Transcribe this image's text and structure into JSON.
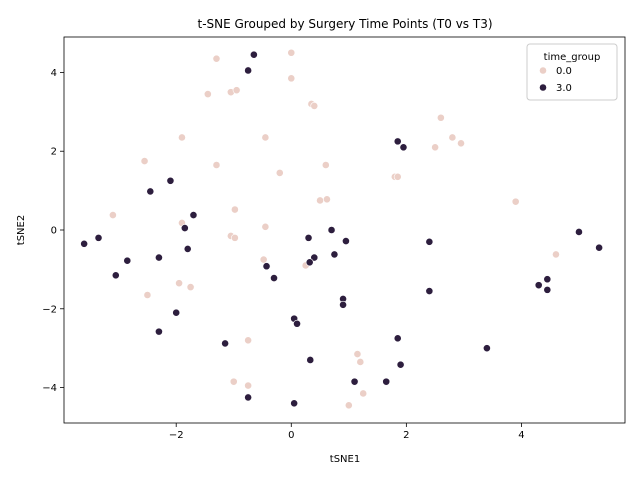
{
  "chart_data": {
    "type": "scatter",
    "title": "t-SNE Grouped by Surgery Time Points (T0 vs T3)",
    "xlabel": "tSNE1",
    "ylabel": "tSNE2",
    "xlim": [
      -3.95,
      5.8
    ],
    "ylim": [
      -4.9,
      4.9
    ],
    "xticks": [
      -2,
      0,
      2,
      4
    ],
    "yticks": [
      -4,
      -2,
      0,
      2,
      4
    ],
    "legend": {
      "title": "time_group",
      "placement": "top-right"
    },
    "series": [
      {
        "name": "0.0",
        "color": "#ebcfc7",
        "points": [
          [
            -1.3,
            4.35
          ],
          [
            0.0,
            4.5
          ],
          [
            0.0,
            3.85
          ],
          [
            -1.05,
            3.5
          ],
          [
            -0.95,
            3.55
          ],
          [
            -1.45,
            3.45
          ],
          [
            0.35,
            3.2
          ],
          [
            0.4,
            3.15
          ],
          [
            2.6,
            2.85
          ],
          [
            2.8,
            2.35
          ],
          [
            2.95,
            2.2
          ],
          [
            2.5,
            2.1
          ],
          [
            -1.9,
            2.35
          ],
          [
            -0.45,
            2.35
          ],
          [
            -2.55,
            1.75
          ],
          [
            -1.3,
            1.65
          ],
          [
            0.6,
            1.65
          ],
          [
            -0.2,
            1.45
          ],
          [
            1.8,
            1.35
          ],
          [
            1.85,
            1.35
          ],
          [
            0.5,
            0.75
          ],
          [
            0.62,
            0.78
          ],
          [
            3.9,
            0.72
          ],
          [
            -3.1,
            0.38
          ],
          [
            -0.98,
            0.52
          ],
          [
            -1.9,
            0.18
          ],
          [
            -0.45,
            0.08
          ],
          [
            -1.05,
            -0.15
          ],
          [
            -0.98,
            -0.2
          ],
          [
            -0.48,
            -0.75
          ],
          [
            0.25,
            -0.9
          ],
          [
            4.6,
            -0.62
          ],
          [
            -1.95,
            -1.35
          ],
          [
            -1.75,
            -1.45
          ],
          [
            -2.5,
            -1.65
          ],
          [
            -0.75,
            -2.8
          ],
          [
            1.15,
            -3.15
          ],
          [
            1.2,
            -3.35
          ],
          [
            -1.0,
            -3.85
          ],
          [
            -0.75,
            -3.95
          ],
          [
            1.25,
            -4.15
          ],
          [
            1.0,
            -4.45
          ]
        ]
      },
      {
        "name": "3.0",
        "color": "#2d1e3e",
        "points": [
          [
            -0.65,
            4.45
          ],
          [
            -0.75,
            4.05
          ],
          [
            1.85,
            2.25
          ],
          [
            1.95,
            2.1
          ],
          [
            -2.1,
            1.25
          ],
          [
            -2.45,
            0.98
          ],
          [
            -1.7,
            0.38
          ],
          [
            -1.85,
            0.05
          ],
          [
            0.7,
            0.0
          ],
          [
            -3.35,
            -0.2
          ],
          [
            0.3,
            -0.2
          ],
          [
            0.95,
            -0.28
          ],
          [
            2.4,
            -0.3
          ],
          [
            -3.6,
            -0.35
          ],
          [
            -1.8,
            -0.48
          ],
          [
            5.0,
            -0.05
          ],
          [
            5.35,
            -0.45
          ],
          [
            0.75,
            -0.62
          ],
          [
            -2.3,
            -0.7
          ],
          [
            0.4,
            -0.7
          ],
          [
            -2.85,
            -0.78
          ],
          [
            0.32,
            -0.82
          ],
          [
            -0.43,
            -0.92
          ],
          [
            -3.05,
            -1.15
          ],
          [
            -0.3,
            -1.22
          ],
          [
            4.45,
            -1.25
          ],
          [
            4.3,
            -1.4
          ],
          [
            4.45,
            -1.52
          ],
          [
            2.4,
            -1.55
          ],
          [
            0.9,
            -1.75
          ],
          [
            0.9,
            -1.9
          ],
          [
            -2.0,
            -2.1
          ],
          [
            0.05,
            -2.25
          ],
          [
            0.1,
            -2.38
          ],
          [
            -2.3,
            -2.58
          ],
          [
            1.85,
            -2.75
          ],
          [
            -1.15,
            -2.88
          ],
          [
            3.4,
            -3.0
          ],
          [
            0.33,
            -3.3
          ],
          [
            1.9,
            -3.42
          ],
          [
            1.1,
            -3.85
          ],
          [
            1.65,
            -3.85
          ],
          [
            -0.75,
            -4.25
          ],
          [
            0.05,
            -4.4
          ]
        ]
      }
    ]
  }
}
